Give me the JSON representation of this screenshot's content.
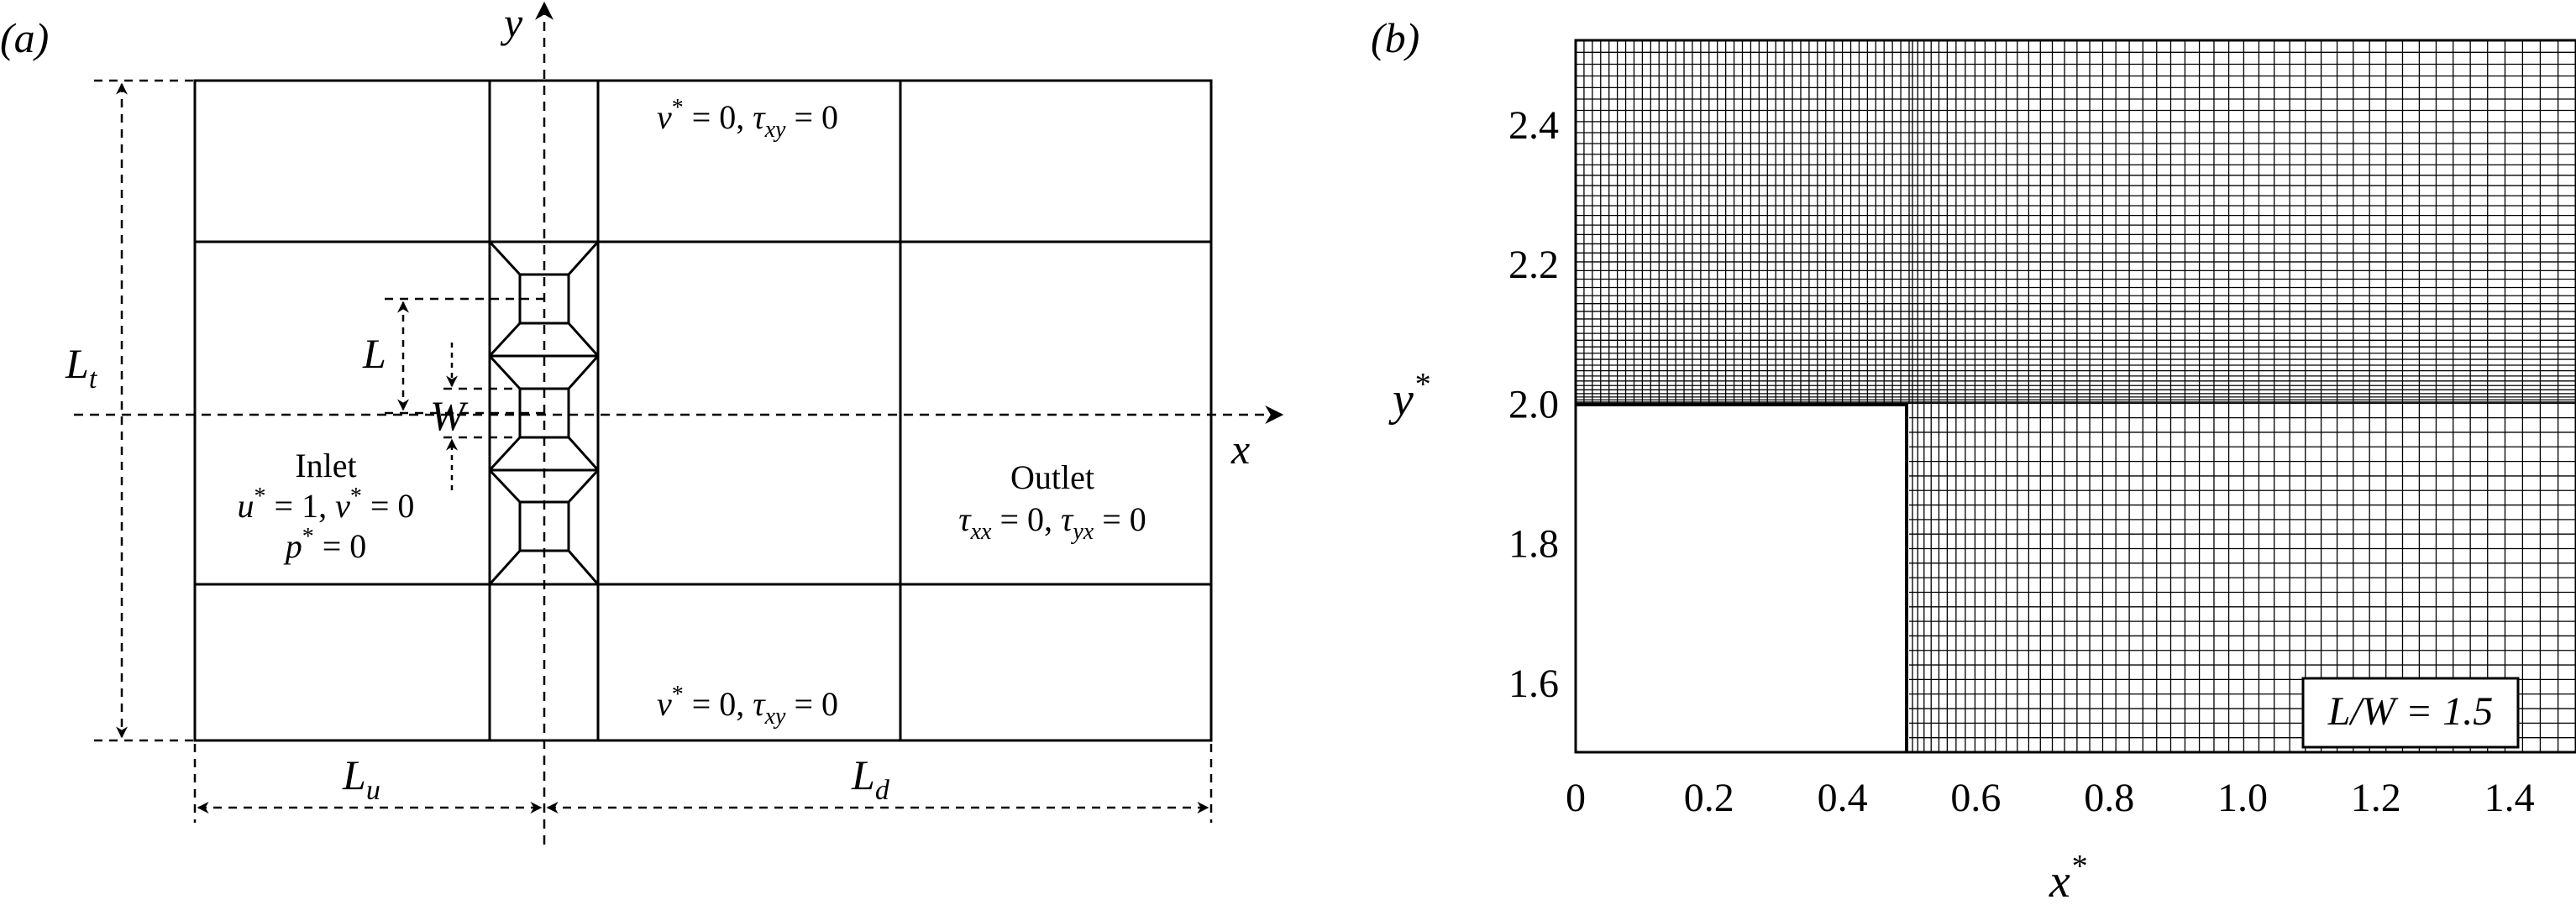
{
  "panel_a": {
    "label": "(a)",
    "axis_x": "x",
    "axis_y": "y",
    "dim_Lt": {
      "main": "L",
      "sub": "t"
    },
    "dim_Lu": {
      "main": "L",
      "sub": "u"
    },
    "dim_Ld": {
      "main": "L",
      "sub": "d"
    },
    "dim_L": "L",
    "dim_W": "W",
    "inlet": {
      "title": "Inlet",
      "line1": {
        "a": "u",
        "sa": "*",
        "eq1": " = 1, ",
        "b": "v",
        "sb": "*",
        "eq2": " = 0"
      },
      "line2": {
        "a": "p",
        "sa": "*",
        "eq1": " = 0"
      }
    },
    "outlet": {
      "title": "Outlet",
      "line1": {
        "a": "τ",
        "sa": "xx",
        "eq1": " = 0, ",
        "b": "τ",
        "sb": "yx",
        "eq2": " = 0"
      }
    },
    "wall_top": {
      "a": "v",
      "sa": "*",
      "eq1": " = 0, ",
      "b": "τ",
      "sb": "xy",
      "eq2": " = 0"
    },
    "wall_bottom": {
      "a": "v",
      "sa": "*",
      "eq1": " = 0, ",
      "b": "τ",
      "sb": "xy",
      "eq2": " = 0"
    }
  },
  "panel_b": {
    "label": "(b)",
    "xlabel": {
      "main": "x",
      "sup": "*"
    },
    "ylabel": {
      "main": "y",
      "sup": "*"
    },
    "x_ticks": [
      "0",
      "0.2",
      "0.4",
      "0.6",
      "0.8",
      "1.0",
      "1.2",
      "1.4"
    ],
    "y_ticks": [
      "1.6",
      "1.8",
      "2.0",
      "2.2",
      "2.4"
    ],
    "legend": "L/W = 1.5",
    "xlim": [
      0,
      1.5
    ],
    "ylim": [
      1.5,
      2.52
    ],
    "block": {
      "x_max": 0.5,
      "y_max": 2.0
    }
  }
}
